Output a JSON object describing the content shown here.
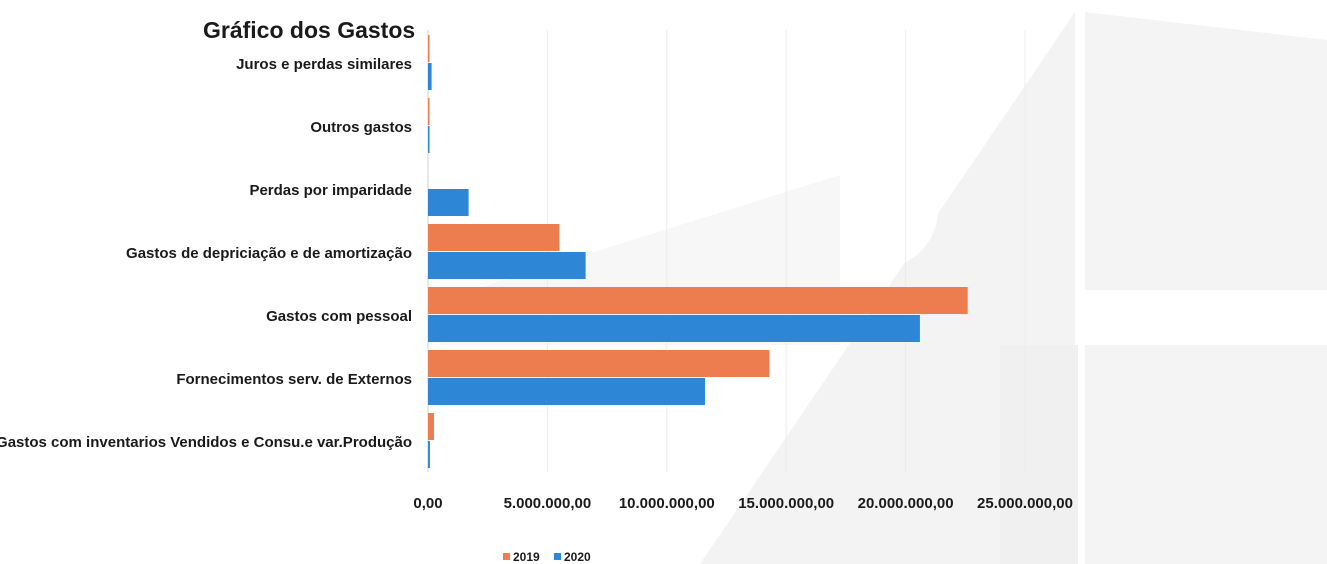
{
  "chart_data": {
    "type": "bar",
    "orientation": "horizontal",
    "title": "Gráfico dos Gastos",
    "categories": [
      "Juros e perdas similares",
      "Outros gastos",
      "Perdas por imparidade",
      "Gastos de depriciação e de amortização",
      "Gastos com pessoal",
      "Fornecimentos serv. de Externos",
      "Gastos com inventarios Vendidos e Consu.e var.Produção"
    ],
    "series": [
      {
        "name": "2019",
        "color": "#ed7d4e",
        "values": [
          50000,
          30000,
          0,
          5500000,
          22600000,
          14300000,
          250000
        ]
      },
      {
        "name": "2020",
        "color": "#2e86d6",
        "values": [
          150000,
          40000,
          1700000,
          6600000,
          20600000,
          11600000,
          80000
        ]
      }
    ],
    "xlim": [
      0,
      25000000
    ],
    "xticks": [
      0,
      5000000,
      10000000,
      15000000,
      20000000,
      25000000
    ],
    "xtick_labels": [
      "0,00",
      "5.000.000,00",
      "10.000.000,00",
      "15.000.000,00",
      "20.000.000,00",
      "25.000.000,00"
    ],
    "grid": true,
    "legend": "bottom"
  }
}
